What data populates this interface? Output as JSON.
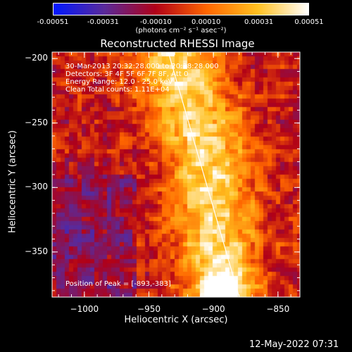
{
  "colorbar": {
    "ticks": [
      "-0.00051",
      "-0.00031",
      "-0.00010",
      "0.00010",
      "0.00031",
      "0.00051"
    ],
    "units": "(photons cm⁻² s⁻¹ asec⁻²)"
  },
  "annotations": {
    "time_range": "30-Mar-2013 20:32:28.000 to 20:38:28.000",
    "detectors": "Detectors: 3F 4F 5F 6F 7F 8F, Att 0",
    "energy": "Energy Range: 12.0 - 25.0 keV",
    "method": "Clean     Total counts: 1.11E+04",
    "peak": "Position of Peak = [-893,-383]"
  },
  "footer": {
    "date": "12-May-2022 07:31"
  },
  "chart_data": {
    "type": "heatmap",
    "title": "Reconstructed RHESSI Image",
    "xlabel": "Heliocentric X (arcsec)",
    "ylabel": "Heliocentric Y (arcsec)",
    "xlim": [
      -1025,
      -833
    ],
    "ylim": [
      -385,
      -195
    ],
    "xticks": [
      -1000,
      -950,
      -900,
      -850
    ],
    "yticks": [
      -200,
      -250,
      -300,
      -350
    ],
    "value_range": [
      -0.00051,
      0.00051
    ],
    "peak_position": [
      -893,
      -383
    ],
    "limb_line": [
      [
        -935,
        -195
      ],
      [
        -880,
        -385
      ]
    ],
    "colorscale": [
      "#0018ff",
      "#5a2a9a",
      "#b00018",
      "#ff6600",
      "#ffc020",
      "#ffffff"
    ],
    "emission_ridge": [
      [
        -930,
        -200
      ],
      [
        -915,
        -240
      ],
      [
        -905,
        -275
      ],
      [
        -900,
        -315
      ],
      [
        -897,
        -350
      ],
      [
        -893,
        -383
      ]
    ]
  }
}
